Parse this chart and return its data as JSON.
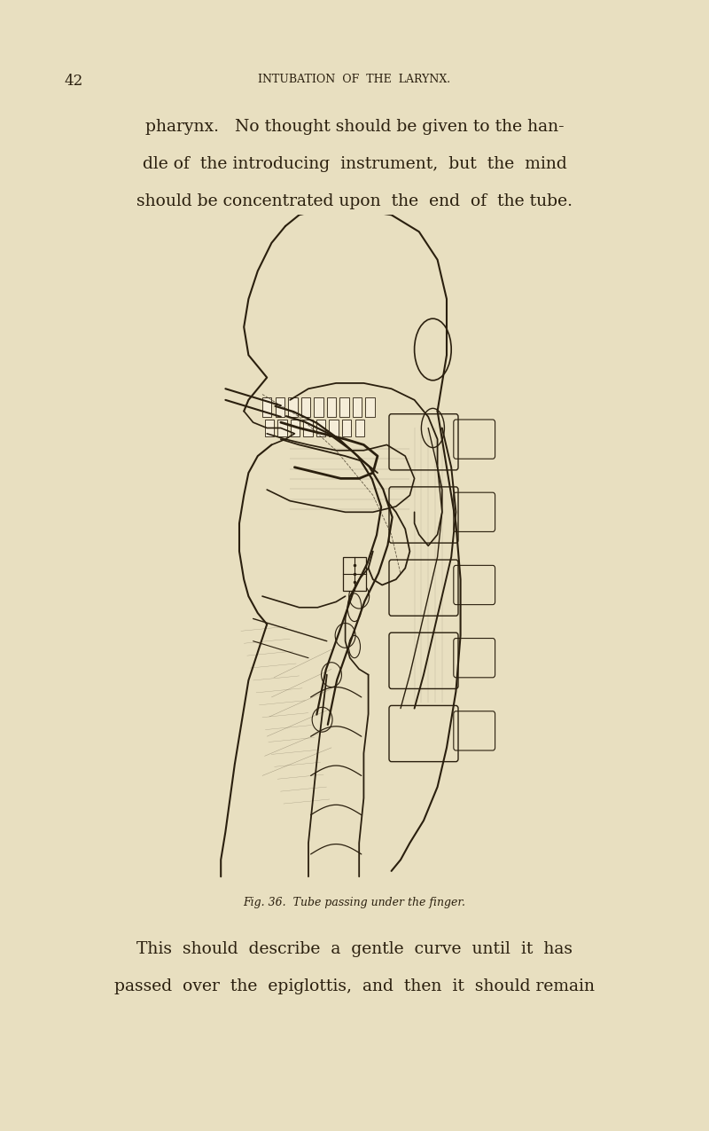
{
  "background_color": "#e8dfc0",
  "page_width": 8.0,
  "page_height": 12.75,
  "dpi": 100,
  "page_number": "42",
  "header_text": "INTUBATION  OF  THE  LARYNX.",
  "body_text_top_lines": [
    "pharynx.   No thought should be given to the han-",
    "dle of  the introducing  instrument,  but  the  mind",
    "should be concentrated upon  the  end  of  the tube."
  ],
  "caption_text": "Fig. 36.  Tube passing under the finger.",
  "body_text_bottom_lines": [
    "This  should  describe  a  gentle  curve  until  it  has",
    "passed  over  the  epiglottis,  and  then  it  should remain"
  ],
  "text_color": "#2a1f0e",
  "header_fontsize": 9,
  "body_fontsize": 13.5,
  "caption_fontsize": 9,
  "page_number_fontsize": 12
}
